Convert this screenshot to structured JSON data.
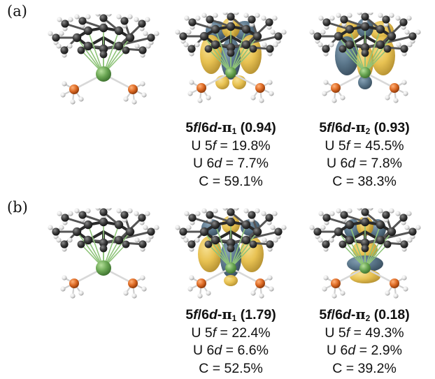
{
  "panels": [
    {
      "label": "(a)",
      "orbitals": [
        {
          "pre": "5",
          "f": "f",
          "mid": "/6",
          "d": "d",
          "dash": "-",
          "pi": "π",
          "sub": "1",
          "occ": " (0.94)",
          "u5f_pre": "U 5",
          "u5f_sym": "f",
          "u5f_val": " = 19.8%",
          "u6d_pre": "U 6",
          "u6d_sym": "d",
          "u6d_val": " = 7.7%",
          "c": "C = 59.1%"
        },
        {
          "pre": "5",
          "f": "f",
          "mid": "/6",
          "d": "d",
          "dash": "-",
          "pi": "π",
          "sub": "2",
          "occ": " (0.93)",
          "u5f_pre": "U 5",
          "u5f_sym": "f",
          "u5f_val": " = 45.5%",
          "u6d_pre": "U 6",
          "u6d_sym": "d",
          "u6d_val": " = 7.8%",
          "c": "C = 38.3%"
        }
      ]
    },
    {
      "label": "(b)",
      "orbitals": [
        {
          "pre": "5",
          "f": "f",
          "mid": "/6",
          "d": "d",
          "dash": "-",
          "pi": "π",
          "sub": "1",
          "occ": " (1.79)",
          "u5f_pre": "U 5",
          "u5f_sym": "f",
          "u5f_val": " = 22.4%",
          "u6d_pre": "U 6",
          "u6d_sym": "d",
          "u6d_val": " = 6.6%",
          "c": "C = 52.5%"
        },
        {
          "pre": "5",
          "f": "f",
          "mid": "/6",
          "d": "d",
          "dash": "-",
          "pi": "π",
          "sub": "2",
          "occ": " (0.18)",
          "u5f_pre": "U 5",
          "u5f_sym": "f",
          "u5f_val": " = 49.3%",
          "u6d_pre": "U 6",
          "u6d_sym": "d",
          "u6d_val": " = 2.9%",
          "c": "C = 39.2%"
        }
      ]
    }
  ],
  "colors": {
    "lobe_yellow": "#e6bd45",
    "lobe_blue": "#4f6d83",
    "uranium": "#6aa653",
    "carbon": "#3b3b3b",
    "hydrogen": "#e4e4e4",
    "phosphorus": "#dd6a24"
  }
}
